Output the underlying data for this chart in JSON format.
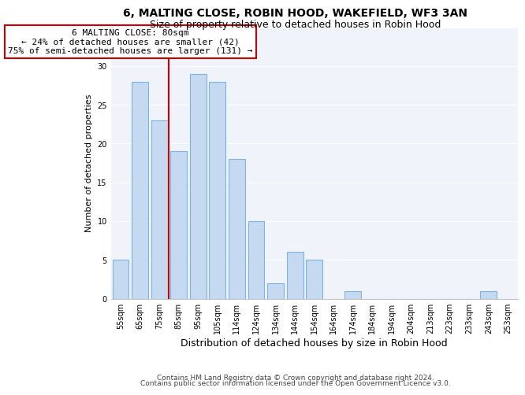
{
  "title": "6, MALTING CLOSE, ROBIN HOOD, WAKEFIELD, WF3 3AN",
  "subtitle": "Size of property relative to detached houses in Robin Hood",
  "xlabel": "Distribution of detached houses by size in Robin Hood",
  "ylabel": "Number of detached properties",
  "categories": [
    "55sqm",
    "65sqm",
    "75sqm",
    "85sqm",
    "95sqm",
    "105sqm",
    "114sqm",
    "124sqm",
    "134sqm",
    "144sqm",
    "154sqm",
    "164sqm",
    "174sqm",
    "184sqm",
    "194sqm",
    "204sqm",
    "213sqm",
    "223sqm",
    "233sqm",
    "243sqm",
    "253sqm"
  ],
  "values": [
    5,
    28,
    23,
    19,
    29,
    28,
    18,
    10,
    2,
    6,
    5,
    0,
    1,
    0,
    0,
    0,
    0,
    0,
    0,
    1,
    0
  ],
  "bar_color": "#c5d9f1",
  "bar_edge_color": "#7cb4e4",
  "vline_color": "#cc0000",
  "ylim": [
    0,
    35
  ],
  "yticks": [
    0,
    5,
    10,
    15,
    20,
    25,
    30,
    35
  ],
  "annotation_title": "6 MALTING CLOSE: 80sqm",
  "annotation_line1": "← 24% of detached houses are smaller (42)",
  "annotation_line2": "75% of semi-detached houses are larger (131) →",
  "annotation_box_color": "#ffffff",
  "annotation_box_edge": "#cc0000",
  "footer1": "Contains HM Land Registry data © Crown copyright and database right 2024.",
  "footer2": "Contains public sector information licensed under the Open Government Licence v3.0.",
  "title_fontsize": 10,
  "subtitle_fontsize": 9,
  "xlabel_fontsize": 9,
  "ylabel_fontsize": 8,
  "tick_fontsize": 7,
  "annotation_fontsize": 8,
  "footer_fontsize": 6.5,
  "bg_color": "#f0f4fa"
}
